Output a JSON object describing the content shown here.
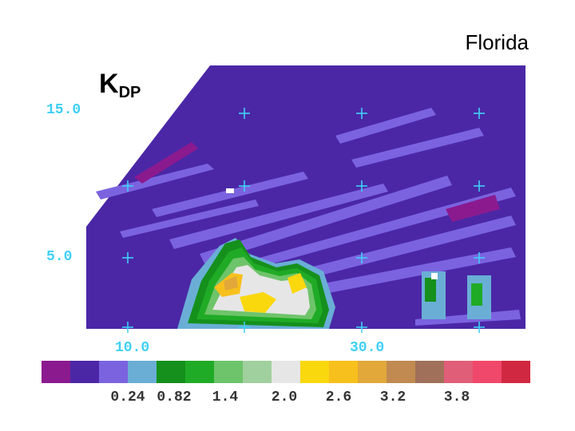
{
  "region_label": "Florida",
  "panel": {
    "symbol": "K",
    "subscript": "DP"
  },
  "y_ticks": [
    "15.0",
    "5.0"
  ],
  "x_ticks": [
    "10.0",
    "30.0"
  ],
  "colorbar": {
    "colors": [
      "#8b1a8f",
      "#4b27a6",
      "#7b63e0",
      "#6aaed6",
      "#15901c",
      "#20ab26",
      "#6ec46a",
      "#a0d09e",
      "#e6e6e6",
      "#fad80e",
      "#f8c01c",
      "#e2a83a",
      "#c08a50",
      "#a0705a",
      "#e05e78",
      "#f0486a",
      "#d02840"
    ],
    "tick_labels": [
      "0.24",
      "0.82",
      "1.4",
      "2.0",
      "2.6",
      "3.2",
      "3.8"
    ]
  },
  "colors": {
    "background": "#4b27a6",
    "grid_mark": "#3fd0f5",
    "axis_text": "#3fd0f5"
  }
}
